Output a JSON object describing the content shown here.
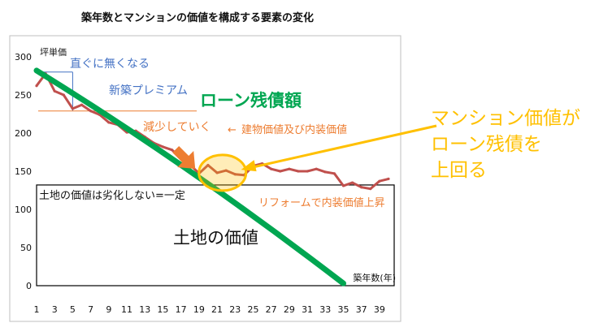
{
  "chart_data": {
    "type": "line",
    "title": "築年数とマンションの価値を構成する要素の変化",
    "ylabel": "坪単価",
    "xlabel": "築年数(年)",
    "ylim": [
      0,
      300
    ],
    "yticks": [
      0,
      50,
      100,
      150,
      200,
      250,
      300
    ],
    "xlim": [
      1,
      40
    ],
    "xticks": [
      1,
      3,
      5,
      7,
      9,
      11,
      13,
      15,
      17,
      19,
      21,
      23,
      25,
      27,
      29,
      31,
      33,
      35,
      37,
      39
    ],
    "grid": false,
    "series": [
      {
        "color": "#c0504d",
        "x": [
          1,
          2,
          3,
          4,
          5,
          6,
          7,
          8,
          9,
          10,
          11,
          12,
          13,
          14,
          15,
          16,
          17,
          18,
          19,
          20,
          21,
          22,
          23,
          24,
          25,
          26,
          27,
          28,
          29,
          30,
          31,
          32,
          33,
          34,
          35,
          36,
          37,
          38,
          39,
          40
        ],
        "values": [
          262,
          278,
          255,
          250,
          232,
          237,
          229,
          224,
          214,
          211,
          201,
          203,
          195,
          187,
          182,
          178,
          168,
          159,
          147,
          158,
          148,
          151,
          146,
          145,
          157,
          160,
          153,
          150,
          153,
          150,
          150,
          153,
          149,
          147,
          131,
          135,
          129,
          127,
          137,
          140
        ]
      },
      {
        "color": "#00a651",
        "x": [
          1,
          18,
          35
        ],
        "values": [
          282,
          150,
          3
        ]
      }
    ],
    "land_value": 132,
    "reference_levels": [
      {
        "value": 280,
        "color": "#4472c4"
      },
      {
        "value": 229,
        "color": "#ed7d31"
      }
    ],
    "annotations": {
      "direct_loss": "直ぐに無くなる",
      "new_premium": "新築プレミアム",
      "loan_balance": "ローン残債額",
      "building_interior": "建物価値及び内装価値",
      "building_interior_arrow": "←",
      "decreasing": "減少していく",
      "reform": "リフォームで内装価値上昇",
      "land_constant": "土地の価値は劣化しない=一定",
      "land_value": "土地の価値",
      "callout_line1": "マンション価値が",
      "callout_line2": "ローン残債を",
      "callout_line3": "上回る"
    }
  }
}
